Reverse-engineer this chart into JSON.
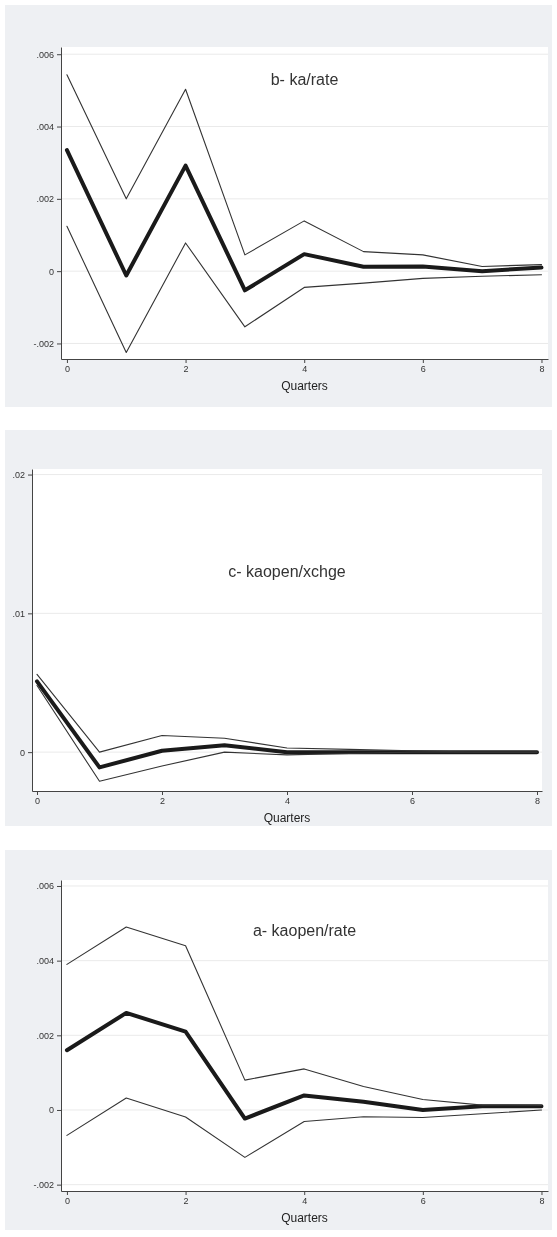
{
  "chart_data": [
    {
      "type": "line",
      "title": "b- ka/rate",
      "xlabel": "Quarters",
      "x": [
        0,
        1,
        2,
        3,
        4,
        5,
        6,
        7,
        8
      ],
      "xlim": [
        -0.1,
        8.11
      ],
      "xticks": [
        0,
        2,
        4,
        6,
        8
      ],
      "ylim": [
        -0.00243,
        0.0062
      ],
      "yticks": [
        {
          "value": -0.002,
          "label": "-.002"
        },
        {
          "value": 0,
          "label": "0"
        },
        {
          "value": 0.002,
          "label": ".002"
        },
        {
          "value": 0.004,
          "label": ".004"
        },
        {
          "value": 0.006,
          "label": ".006"
        }
      ],
      "grid": "y",
      "series": [
        {
          "color": "#1a1a1a",
          "values": [
            0.00335,
            -0.00012,
            0.00292,
            -0.00053,
            0.00047,
            0.00012,
            0.00013,
            0,
            0.0001
          ]
        },
        {
          "color": "#333333",
          "values": [
            0.00543,
            0.002,
            0.00503,
            0.00045,
            0.00139,
            0.00054,
            0.00045,
            0.00013,
            0.00018
          ]
        },
        {
          "color": "#333333",
          "values": [
            0.00124,
            -0.00225,
            0.00078,
            -0.00154,
            -0.00045,
            -0.00033,
            -0.0002,
            -0.00014,
            -0.0001
          ]
        }
      ]
    },
    {
      "type": "line",
      "title": "c- kaopen/xchge",
      "xlabel": "Quarters",
      "x": [
        0,
        1,
        2,
        3,
        4,
        5,
        6,
        7,
        8
      ],
      "xlim": [
        -0.08,
        8.08
      ],
      "xticks": [
        0,
        2,
        4,
        6,
        8
      ],
      "ylim": [
        -0.0028,
        0.0204
      ],
      "yticks": [
        {
          "value": 0,
          "label": "0"
        },
        {
          "value": 0.01,
          "label": ".01"
        },
        {
          "value": 0.02,
          "label": ".02"
        }
      ],
      "grid": "y",
      "series": [
        {
          "color": "#1a1a1a",
          "values": [
            0.0051,
            -0.0011,
            0.0001,
            0.0005,
            0,
            0,
            0,
            0,
            0
          ]
        },
        {
          "color": "#333333",
          "values": [
            0.0056,
            0,
            0.0012,
            0.001,
            0.0003,
            0.0002,
            0.0001,
            0,
            0
          ]
        },
        {
          "color": "#333333",
          "values": [
            0.0048,
            -0.0021,
            -0.001,
            0,
            -0.0002,
            -0.0001,
            0,
            0,
            0
          ]
        }
      ]
    },
    {
      "type": "line",
      "title": "a- kaopen/rate",
      "xlabel": "Quarters",
      "x": [
        0,
        1,
        2,
        3,
        4,
        5,
        6,
        7,
        8
      ],
      "xlim": [
        -0.1,
        8.11
      ],
      "xticks": [
        0,
        2,
        4,
        6,
        8
      ],
      "ylim": [
        -0.00217,
        0.00616
      ],
      "yticks": [
        {
          "value": -0.002,
          "label": "-.002"
        },
        {
          "value": 0,
          "label": "0"
        },
        {
          "value": 0.002,
          "label": ".002"
        },
        {
          "value": 0.004,
          "label": ".004"
        },
        {
          "value": 0.006,
          "label": ".006"
        }
      ],
      "grid": "y",
      "series": [
        {
          "color": "#1a1a1a",
          "values": [
            0.0016,
            0.0026,
            0.0021,
            -0.00023,
            0.00039,
            0.00022,
            0,
            0.0001,
            0.0001
          ]
        },
        {
          "color": "#333333",
          "values": [
            0.0039,
            0.0049,
            0.0044,
            0.0008,
            0.0011,
            0.00063,
            0.00028,
            0.00013,
            0.00012
          ]
        },
        {
          "color": "#333333",
          "values": [
            -0.00068,
            0.00032,
            -0.00019,
            -0.00127,
            -0.00031,
            -0.00018,
            -0.0002,
            -0.0001,
            0
          ]
        }
      ]
    }
  ]
}
